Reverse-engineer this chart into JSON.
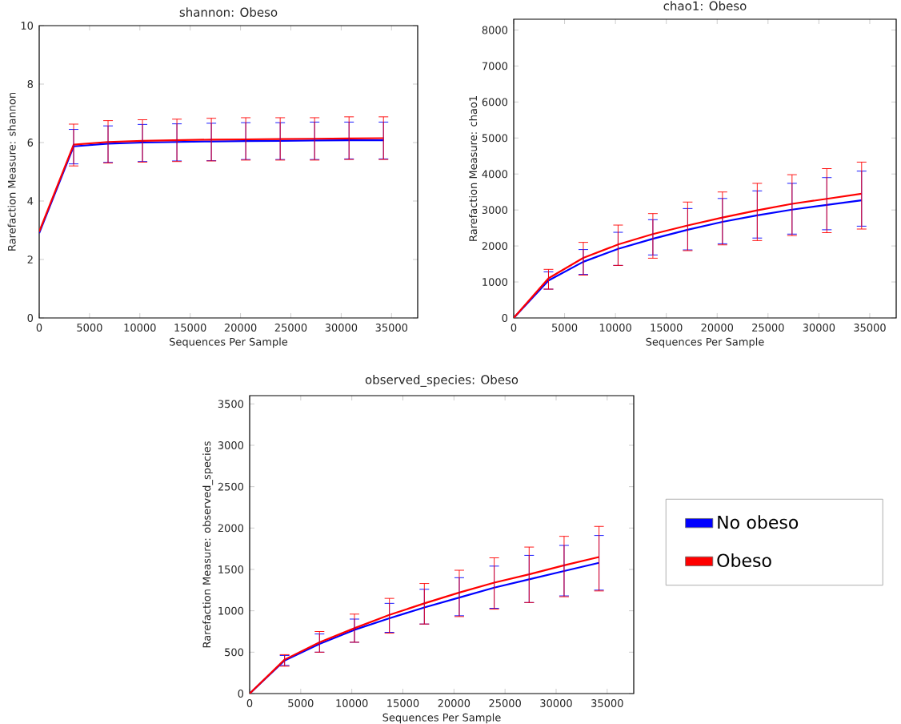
{
  "chart_data": [
    {
      "type": "line",
      "title": "shannon: Obeso",
      "xlabel": "Sequences Per Sample",
      "ylabel": "Rarefaction Measure: shannon",
      "x": [
        0,
        3420,
        6840,
        10260,
        13680,
        17100,
        20520,
        23940,
        27360,
        30780,
        34200
      ],
      "xlim": [
        0,
        37600
      ],
      "ylim": [
        0,
        10
      ],
      "xticks": [
        0,
        5000,
        10000,
        15000,
        20000,
        25000,
        30000,
        35000
      ],
      "yticks": [
        0,
        2,
        4,
        6,
        8,
        10
      ],
      "grid": false,
      "legend": false,
      "line_style": "solid",
      "series": [
        {
          "color": "#0000ff",
          "values": [
            2.9,
            5.87,
            5.96,
            6.0,
            6.02,
            6.04,
            6.05,
            6.06,
            6.07,
            6.08,
            6.08
          ],
          "errors": [
            null,
            [
              5.27,
              6.45
            ],
            [
              5.32,
              6.57
            ],
            [
              5.35,
              6.62
            ],
            [
              5.37,
              6.64
            ],
            [
              5.38,
              6.66
            ],
            [
              5.42,
              6.68
            ],
            [
              5.42,
              6.68
            ],
            [
              5.42,
              6.7
            ],
            [
              5.44,
              6.7
            ],
            [
              5.44,
              6.7
            ]
          ]
        },
        {
          "color": "#ff0000",
          "values": [
            2.95,
            5.93,
            6.02,
            6.06,
            6.08,
            6.1,
            6.11,
            6.12,
            6.13,
            6.14,
            6.15
          ],
          "errors": [
            null,
            [
              5.2,
              6.63
            ],
            [
              5.3,
              6.75
            ],
            [
              5.33,
              6.78
            ],
            [
              5.35,
              6.8
            ],
            [
              5.37,
              6.83
            ],
            [
              5.4,
              6.85
            ],
            [
              5.4,
              6.85
            ],
            [
              5.4,
              6.85
            ],
            [
              5.42,
              6.88
            ],
            [
              5.42,
              6.88
            ]
          ]
        }
      ]
    },
    {
      "type": "line",
      "title": "chao1: Obeso",
      "xlabel": "Sequences Per Sample",
      "ylabel": "Rarefaction Measure: chao1",
      "x": [
        0,
        3420,
        6840,
        10260,
        13680,
        17100,
        20520,
        23940,
        27360,
        30780,
        34200
      ],
      "xlim": [
        0,
        37600
      ],
      "ylim": [
        0,
        8300
      ],
      "xticks": [
        0,
        5000,
        10000,
        15000,
        20000,
        25000,
        30000,
        35000
      ],
      "yticks": [
        0,
        1000,
        2000,
        3000,
        4000,
        5000,
        6000,
        7000,
        8000
      ],
      "grid": false,
      "legend": false,
      "line_style": "solid",
      "series": [
        {
          "color": "#0000ff",
          "values": [
            0,
            1040,
            1560,
            1920,
            2200,
            2450,
            2670,
            2850,
            3010,
            3140,
            3270
          ],
          "errors": [
            null,
            [
              800,
              1280
            ],
            [
              1210,
              1900
            ],
            [
              1460,
              2380
            ],
            [
              1750,
              2730
            ],
            [
              1890,
              3040
            ],
            [
              2060,
              3320
            ],
            [
              2220,
              3530
            ],
            [
              2330,
              3740
            ],
            [
              2450,
              3900
            ],
            [
              2550,
              4080
            ]
          ]
        },
        {
          "color": "#ff0000",
          "values": [
            0,
            1100,
            1670,
            2040,
            2330,
            2570,
            2790,
            2990,
            3170,
            3310,
            3450
          ],
          "errors": [
            null,
            [
              800,
              1350
            ],
            [
              1190,
              2100
            ],
            [
              1460,
              2580
            ],
            [
              1660,
              2900
            ],
            [
              1870,
              3220
            ],
            [
              2030,
              3500
            ],
            [
              2150,
              3740
            ],
            [
              2290,
              3980
            ],
            [
              2370,
              4150
            ],
            [
              2470,
              4330
            ]
          ]
        }
      ]
    },
    {
      "type": "line",
      "title": "observed_species: Obeso",
      "xlabel": "Sequences Per Sample",
      "ylabel": "Rarefaction Measure: observed_species",
      "x": [
        0,
        3420,
        6840,
        10260,
        13680,
        17100,
        20520,
        23940,
        27360,
        30780,
        34200
      ],
      "xlim": [
        0,
        37600
      ],
      "ylim": [
        0,
        3600
      ],
      "xticks": [
        0,
        5000,
        10000,
        15000,
        20000,
        25000,
        30000,
        35000
      ],
      "yticks": [
        0,
        500,
        1000,
        1500,
        2000,
        2500,
        3000,
        3500
      ],
      "grid": false,
      "legend": "right",
      "line_style": "solid",
      "series": [
        {
          "name": "No obeso",
          "color": "#0000ff",
          "values": [
            0,
            400,
            600,
            770,
            910,
            1040,
            1160,
            1280,
            1380,
            1480,
            1580
          ],
          "errors": [
            null,
            [
              340,
              460
            ],
            [
              500,
              720
            ],
            [
              620,
              900
            ],
            [
              740,
              1090
            ],
            [
              840,
              1260
            ],
            [
              940,
              1400
            ],
            [
              1030,
              1540
            ],
            [
              1100,
              1670
            ],
            [
              1180,
              1790
            ],
            [
              1250,
              1910
            ]
          ]
        },
        {
          "name": "Obeso",
          "color": "#ff0000",
          "values": [
            0,
            410,
            620,
            790,
            950,
            1090,
            1220,
            1340,
            1440,
            1550,
            1650
          ],
          "errors": [
            null,
            [
              330,
              470
            ],
            [
              500,
              750
            ],
            [
              620,
              960
            ],
            [
              730,
              1150
            ],
            [
              840,
              1330
            ],
            [
              930,
              1490
            ],
            [
              1020,
              1640
            ],
            [
              1100,
              1770
            ],
            [
              1170,
              1900
            ],
            [
              1240,
              2020
            ]
          ]
        }
      ]
    }
  ]
}
